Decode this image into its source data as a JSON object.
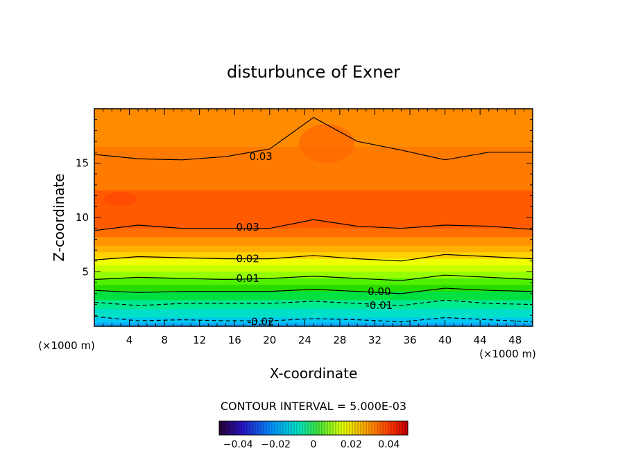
{
  "chart_data": {
    "type": "heatmap",
    "subtype": "filled-contour",
    "title": "disturbunce of Exner",
    "xlabel": "X-coordinate",
    "ylabel": "Z-coordinate",
    "x_unit_left": "(×1000 m)",
    "x_unit_right": "(×1000 m)",
    "xlim": [
      0,
      50
    ],
    "ylim": [
      0,
      20
    ],
    "x_ticks": [
      "4",
      "8",
      "12",
      "16",
      "20",
      "24",
      "28",
      "32",
      "36",
      "40",
      "44",
      "48"
    ],
    "y_ticks": [
      "5",
      "10",
      "15"
    ],
    "contour_interval_text": "CONTOUR INTERVAL = 5.000E-03",
    "contour_labels": [
      {
        "text": "0.03",
        "x": 19,
        "z": 15.6
      },
      {
        "text": "0.03",
        "x": 17.5,
        "z": 9.1
      },
      {
        "text": "0.02",
        "x": 17.5,
        "z": 6.2
      },
      {
        "text": "0.01",
        "x": 17.5,
        "z": 4.4
      },
      {
        "text": "0.00",
        "x": 32.5,
        "z": 3.2
      },
      {
        "text": "-0.01",
        "x": 32.5,
        "z": 1.9
      },
      {
        "text": "-0.02",
        "x": 19,
        "z": 0.4
      }
    ],
    "colorbar_ticks": [
      "-0.04",
      "-0.02",
      "0",
      "0.02",
      "0.04"
    ],
    "colorbar_range": [
      -0.05,
      0.05
    ],
    "contour_lines_z": [
      {
        "level": 0.03,
        "z": [
          15.8,
          15.4,
          15.3,
          15.6,
          16.3,
          19.2,
          17,
          16.2,
          15.3,
          16,
          16
        ]
      },
      {
        "level": 0.03,
        "z": [
          8.8,
          9.3,
          9.0,
          9.0,
          9.0,
          9.8,
          9.2,
          9.0,
          9.3,
          9.2,
          8.9
        ]
      },
      {
        "level": 0.02,
        "z": [
          6.1,
          6.4,
          6.3,
          6.2,
          6.2,
          6.5,
          6.2,
          6.0,
          6.6,
          6.4,
          6.2
        ]
      },
      {
        "level": 0.01,
        "z": [
          4.3,
          4.5,
          4.4,
          4.3,
          4.4,
          4.6,
          4.4,
          4.2,
          4.7,
          4.5,
          4.3
        ]
      },
      {
        "level": 0.0,
        "z": [
          3.3,
          3.1,
          3.2,
          3.2,
          3.2,
          3.4,
          3.2,
          3.0,
          3.5,
          3.3,
          3.2
        ]
      },
      {
        "level": -0.01,
        "z": [
          2.2,
          1.9,
          2.1,
          2.1,
          2.1,
          2.3,
          2.1,
          1.9,
          2.4,
          2.1,
          2.0
        ]
      },
      {
        "level": -0.02,
        "z": [
          0.9,
          0.5,
          0.6,
          0.5,
          0.5,
          0.7,
          0.6,
          0.4,
          0.8,
          0.6,
          0.4
        ]
      }
    ],
    "color_bands": [
      {
        "z": 20.0,
        "color": "#ff8c00"
      },
      {
        "z": 16.5,
        "color": "#ff7a00"
      },
      {
        "z": 12.5,
        "color": "#ff5a00"
      },
      {
        "z": 9.0,
        "color": "#ff6e00"
      },
      {
        "z": 8.2,
        "color": "#ff9400"
      },
      {
        "z": 7.4,
        "color": "#ffb000"
      },
      {
        "z": 6.8,
        "color": "#ffd200"
      },
      {
        "z": 6.2,
        "color": "#f0ff00"
      },
      {
        "z": 5.6,
        "color": "#c8ff00"
      },
      {
        "z": 5.0,
        "color": "#96ff00"
      },
      {
        "z": 4.4,
        "color": "#50f000"
      },
      {
        "z": 3.8,
        "color": "#28dc00"
      },
      {
        "z": 3.2,
        "color": "#00e040"
      },
      {
        "z": 2.4,
        "color": "#00e890"
      },
      {
        "z": 1.6,
        "color": "#00e0c8"
      },
      {
        "z": 0.8,
        "color": "#00c8f0"
      },
      {
        "z": 0.3,
        "color": "#10a8ff"
      }
    ]
  }
}
